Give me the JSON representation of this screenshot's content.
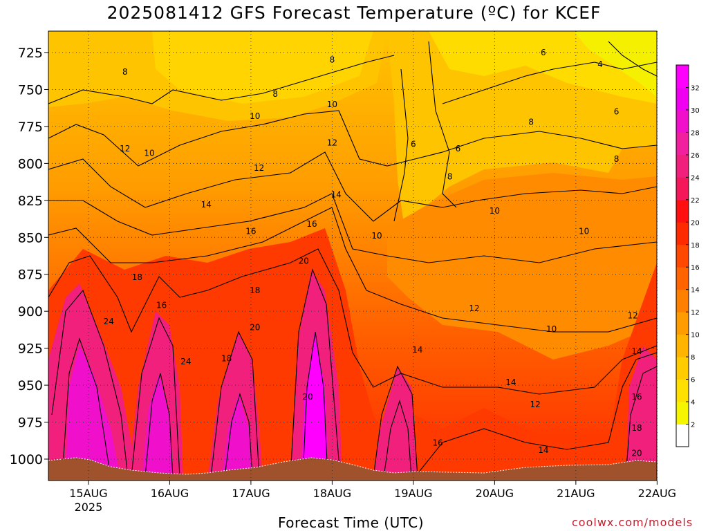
{
  "title": "2025081412 GFS Forecast Temperature (ºC) for KCEF",
  "xlabel": "Forecast Time (UTC)",
  "credit": "coolwx.com/models",
  "chart_data": {
    "type": "heatmap",
    "title": "2025081412 GFS Forecast Temperature (ºC) for KCEF",
    "xlabel": "Forecast Time (UTC)",
    "ylabel": "",
    "x_ticks": [
      "15AUG",
      "16AUG",
      "17AUG",
      "18AUG",
      "19AUG",
      "20AUG",
      "21AUG",
      "22AUG"
    ],
    "x_year_label": "2025",
    "y_ticks": [
      725,
      750,
      775,
      800,
      825,
      850,
      875,
      900,
      925,
      950,
      975,
      1000
    ],
    "ylim": [
      1010,
      705
    ],
    "y_axis": "pressure (hPa), inverted",
    "grid": true,
    "colorbar": {
      "placement": "right",
      "levels": [
        2,
        4,
        6,
        8,
        10,
        12,
        14,
        16,
        18,
        20,
        22,
        24,
        26,
        28,
        30,
        32
      ],
      "colors": [
        "#ffffff",
        "#f5f500",
        "#ffe000",
        "#ffcc00",
        "#ffb400",
        "#ff9c00",
        "#ff8000",
        "#ff6400",
        "#ff4800",
        "#ff2a00",
        "#ff1010",
        "#f4185a",
        "#f0207c",
        "#f0209e",
        "#f010cc",
        "#f000f0",
        "#ff00ff"
      ]
    },
    "contour_labels": [
      {
        "t": 0.45,
        "p": 738,
        "v": 8
      },
      {
        "t": 2.3,
        "p": 753,
        "v": 8
      },
      {
        "t": 3.0,
        "p": 730,
        "v": 8
      },
      {
        "t": 5.6,
        "p": 725,
        "v": 6
      },
      {
        "t": 6.3,
        "p": 733,
        "v": 4
      },
      {
        "t": 6.5,
        "p": 765,
        "v": 6
      },
      {
        "t": 5.45,
        "p": 772,
        "v": 8
      },
      {
        "t": 6.5,
        "p": 797,
        "v": 8
      },
      {
        "t": 4.0,
        "p": 787,
        "v": 6
      },
      {
        "t": 4.55,
        "p": 790,
        "v": 6
      },
      {
        "t": 4.45,
        "p": 809,
        "v": 8
      },
      {
        "t": 3.0,
        "p": 760,
        "v": 10
      },
      {
        "t": 2.05,
        "p": 768,
        "v": 10
      },
      {
        "t": 0.75,
        "p": 793,
        "v": 10
      },
      {
        "t": 0.45,
        "p": 790,
        "v": 12
      },
      {
        "t": 2.1,
        "p": 803,
        "v": 12
      },
      {
        "t": 3.0,
        "p": 786,
        "v": 12
      },
      {
        "t": 3.05,
        "p": 821,
        "v": 14
      },
      {
        "t": 1.45,
        "p": 828,
        "v": 14
      },
      {
        "t": 2.0,
        "p": 846,
        "v": 16
      },
      {
        "t": 2.75,
        "p": 841,
        "v": 16
      },
      {
        "t": 3.55,
        "p": 849,
        "v": 10
      },
      {
        "t": 5.0,
        "p": 832,
        "v": 10
      },
      {
        "t": 6.1,
        "p": 846,
        "v": 10
      },
      {
        "t": 5.7,
        "p": 912,
        "v": 10
      },
      {
        "t": 4.75,
        "p": 898,
        "v": 12
      },
      {
        "t": 6.7,
        "p": 903,
        "v": 12
      },
      {
        "t": 5.5,
        "p": 963,
        "v": 12
      },
      {
        "t": 4.05,
        "p": 926,
        "v": 14
      },
      {
        "t": 5.2,
        "p": 948,
        "v": 14
      },
      {
        "t": 6.75,
        "p": 927,
        "v": 14
      },
      {
        "t": 5.6,
        "p": 994,
        "v": 14
      },
      {
        "t": 4.3,
        "p": 989,
        "v": 16
      },
      {
        "t": 6.75,
        "p": 958,
        "v": 16
      },
      {
        "t": 6.75,
        "p": 979,
        "v": 18
      },
      {
        "t": 6.75,
        "p": 996,
        "v": 20
      },
      {
        "t": 0.6,
        "p": 877,
        "v": 18
      },
      {
        "t": 0.9,
        "p": 896,
        "v": 16
      },
      {
        "t": 0.25,
        "p": 907,
        "v": 24
      },
      {
        "t": 1.2,
        "p": 934,
        "v": 24
      },
      {
        "t": 1.7,
        "p": 932,
        "v": 18
      },
      {
        "t": 2.05,
        "p": 886,
        "v": 18
      },
      {
        "t": 2.05,
        "p": 911,
        "v": 20
      },
      {
        "t": 2.65,
        "p": 866,
        "v": 20
      },
      {
        "t": 2.7,
        "p": 958,
        "v": 20
      }
    ]
  }
}
